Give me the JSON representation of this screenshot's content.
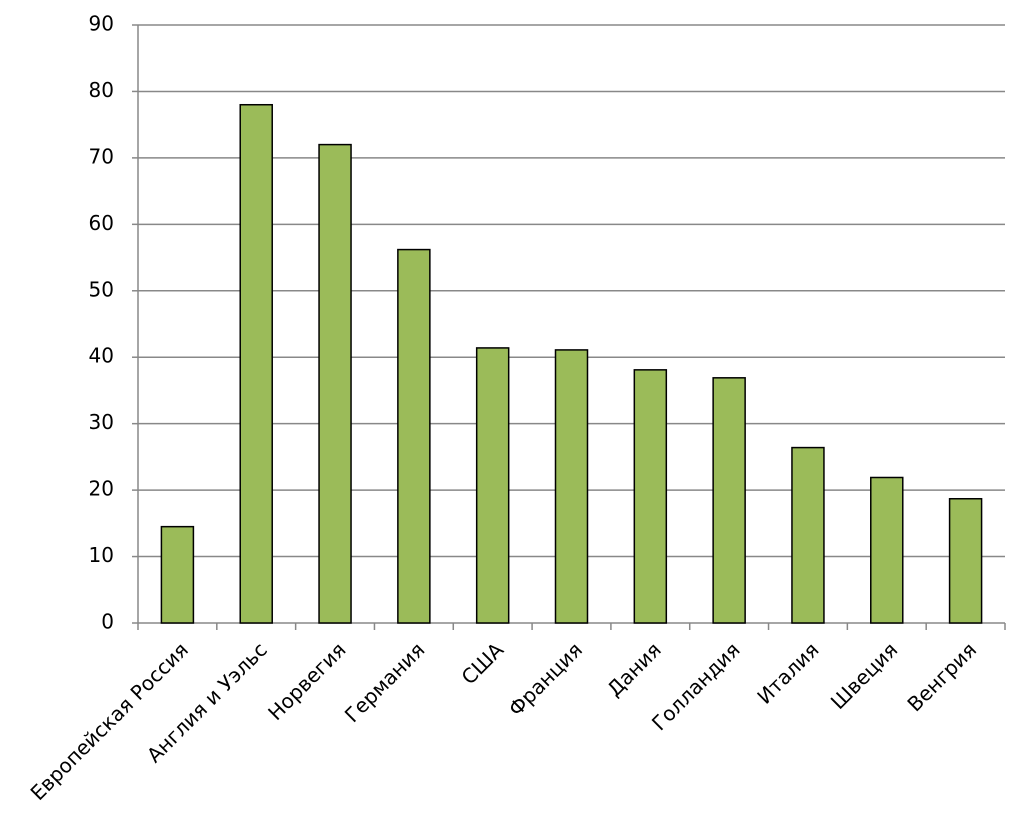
{
  "chart_data": {
    "type": "bar",
    "categories": [
      "Европейская Россия",
      "Англия и Уэльс",
      "Норвегия",
      "Германия",
      "США",
      "Франция",
      "Дания",
      "Голландия",
      "Италия",
      "Швеция",
      "Венгрия"
    ],
    "values": [
      14.5,
      78,
      72,
      56.2,
      41.4,
      41.1,
      38.1,
      36.9,
      26.4,
      21.9,
      18.7
    ],
    "color": "#9bbb59",
    "ylim": [
      0,
      90
    ],
    "yticks": [
      0,
      10,
      20,
      30,
      40,
      50,
      60,
      70,
      80,
      90
    ],
    "grid": true
  }
}
